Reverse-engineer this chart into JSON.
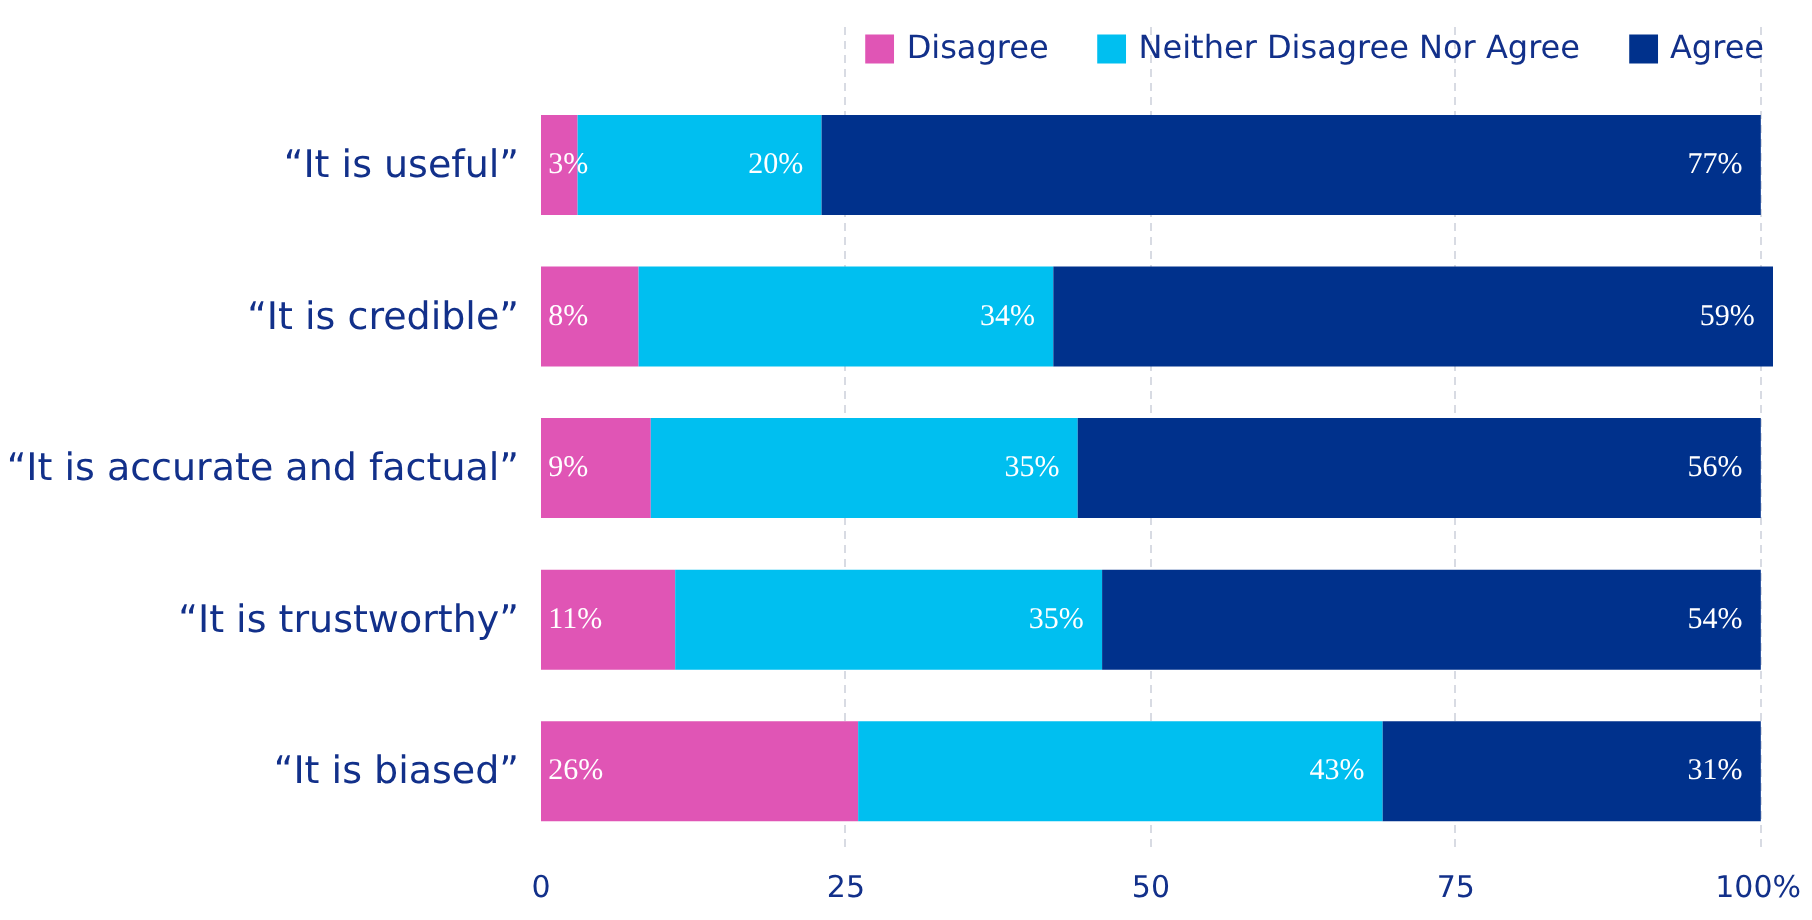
{
  "chart_data": {
    "type": "bar",
    "orientation": "horizontal",
    "stacked": true,
    "categories": [
      "“It is useful”",
      "“It is credible”",
      "“It is accurate and factual”",
      "“It is trustworthy”",
      "“It is biased”"
    ],
    "series": [
      {
        "name": "Disagree",
        "color": "#e055b5",
        "values": [
          3,
          8,
          9,
          11,
          26
        ],
        "value_labels": [
          "3%",
          "8%",
          "9%",
          "11%",
          "26%"
        ]
      },
      {
        "name": "Neither Disagree Nor Agree",
        "color": "#00bff0",
        "values": [
          20,
          34,
          35,
          35,
          43
        ],
        "value_labels": [
          "20%",
          "34%",
          "35%",
          "35%",
          "43%"
        ]
      },
      {
        "name": "Agree",
        "color": "#00318c",
        "values": [
          77,
          59,
          56,
          54,
          31
        ],
        "value_labels": [
          "77%",
          "59%",
          "56%",
          "54%",
          "31%"
        ]
      }
    ],
    "xlim": [
      0,
      101
    ],
    "xticks": [
      0,
      25,
      50,
      75,
      {
        "value": 100,
        "label": "100%"
      }
    ],
    "grid": "x",
    "legend": "top right"
  }
}
